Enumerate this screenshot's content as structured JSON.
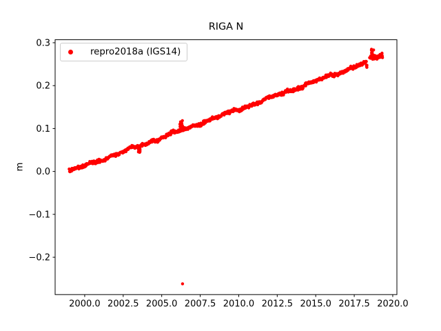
{
  "figure": {
    "title": "RIGA N",
    "background": "#ffffff"
  },
  "legend": {
    "label": "repro2018a (IGS14)",
    "marker_color": "#ff0000",
    "position": "upper left"
  },
  "chart_data": {
    "type": "scatter",
    "title": "RIGA N",
    "xlabel": "",
    "ylabel": "m",
    "grid": false,
    "xlim": [
      1998.08,
      2020.27
    ],
    "ylim": [
      -0.287,
      0.307
    ],
    "xticks": [
      2000.0,
      2002.5,
      2005.0,
      2007.5,
      2010.0,
      2012.5,
      2015.0,
      2017.5,
      2020.0
    ],
    "xtick_labels": [
      "2000.0",
      "2002.5",
      "2005.0",
      "2007.5",
      "2010.0",
      "2012.5",
      "2015.0",
      "2017.5",
      "2020.0"
    ],
    "yticks": [
      0.3,
      0.2,
      0.1,
      0.0,
      -0.1,
      -0.2
    ],
    "ytick_labels": [
      "0.3",
      "0.2",
      "0.1",
      "0.0",
      "−0.1",
      "−0.2"
    ],
    "legend_position": "upper left",
    "series": [
      {
        "name": "repro2018a (IGS14)",
        "color": "#ff0000",
        "marker": "dot",
        "marker_radius_px": 2.2,
        "description": "North component displacement time series, near-linear rise from 0.0 m in 1999 to about 0.27 m in 2019.3",
        "trend": {
          "x0": 1999.0,
          "y0": 0.0,
          "slope_per_year": 0.01315
        },
        "segments": [
          {
            "x_start": 1999.0,
            "x_end": 2018.3,
            "per_year": 52,
            "noise_std": 0.0018,
            "offset": 0.0
          },
          {
            "x_start": 2018.55,
            "x_end": 2019.35,
            "per_year": 90,
            "noise_std": 0.0022,
            "offset": 0.004
          }
        ],
        "anomalies": [
          {
            "x": 2003.55,
            "spread_x": 0.06,
            "offset_min": -0.018,
            "offset_max": -0.005,
            "points": 9,
            "note": "short downward excursion"
          },
          {
            "x": 2006.28,
            "spread_x": 0.1,
            "offset_min": 0.005,
            "offset_max": 0.024,
            "points": 14,
            "note": "upward bump reaching ~0.12 m"
          },
          {
            "x": 2018.3,
            "spread_x": 0.06,
            "offset_min": -0.013,
            "offset_max": -0.004,
            "points": 5,
            "note": "low points before gap"
          },
          {
            "x": 2018.68,
            "spread_x": 0.08,
            "offset_min": 0.004,
            "offset_max": 0.027,
            "points": 22,
            "note": "vertical cluster spike up to ~0.285 m"
          }
        ],
        "outliers": [
          [
            2006.35,
            -0.262
          ],
          [
            2018.5,
            0.265
          ]
        ]
      }
    ]
  }
}
